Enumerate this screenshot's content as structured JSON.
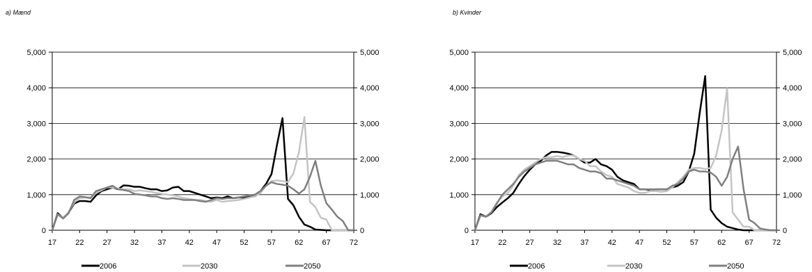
{
  "chart_data": [
    {
      "type": "line",
      "title": "a)  Mænd",
      "x": [
        17,
        18,
        19,
        20,
        21,
        22,
        23,
        24,
        25,
        26,
        27,
        28,
        29,
        30,
        31,
        32,
        33,
        34,
        35,
        36,
        37,
        38,
        39,
        40,
        41,
        42,
        43,
        44,
        45,
        46,
        47,
        48,
        49,
        50,
        51,
        52,
        53,
        54,
        55,
        56,
        57,
        58,
        59,
        60,
        61,
        62,
        63,
        64,
        65,
        66,
        67,
        68,
        69,
        70,
        71,
        72
      ],
      "xticks": [
        "17",
        "22",
        "27",
        "32",
        "37",
        "42",
        "47",
        "52",
        "57",
        "62",
        "67",
        "72"
      ],
      "yticks": [
        "0",
        "1,000",
        "2,000",
        "3,000",
        "4,000",
        "5,000"
      ],
      "xlim": [
        17,
        72
      ],
      "ylim": [
        0,
        5000
      ],
      "series": [
        {
          "name": "2006",
          "color": "#000000",
          "values": [
            0,
            480,
            350,
            500,
            750,
            820,
            820,
            800,
            980,
            1100,
            1150,
            1200,
            1150,
            1260,
            1250,
            1220,
            1220,
            1180,
            1150,
            1150,
            1100,
            1120,
            1200,
            1220,
            1100,
            1100,
            1050,
            1000,
            950,
            900,
            920,
            900,
            950,
            900,
            920,
            920,
            950,
            1000,
            1100,
            1300,
            1580,
            2400,
            3150,
            880,
            700,
            380,
            160,
            100,
            20,
            10,
            0,
            0,
            0,
            0,
            0,
            0
          ]
        },
        {
          "name": "2030",
          "color": "#c4c4c4",
          "values": [
            0,
            450,
            360,
            520,
            780,
            900,
            920,
            920,
            1050,
            1120,
            1200,
            1200,
            1170,
            1150,
            1150,
            1100,
            1120,
            1100,
            1080,
            1050,
            1020,
            1000,
            980,
            950,
            900,
            880,
            850,
            850,
            820,
            800,
            850,
            800,
            820,
            830,
            850,
            880,
            920,
            950,
            1050,
            1250,
            1380,
            1400,
            1380,
            1350,
            1600,
            2200,
            3180,
            800,
            650,
            350,
            300,
            0,
            0,
            0,
            0,
            0
          ]
        },
        {
          "name": "2050",
          "color": "#7f7f7f",
          "values": [
            0,
            450,
            330,
            480,
            850,
            950,
            930,
            900,
            1100,
            1150,
            1200,
            1250,
            1150,
            1130,
            1100,
            1020,
            1000,
            980,
            950,
            950,
            900,
            880,
            900,
            880,
            850,
            850,
            850,
            820,
            800,
            850,
            900,
            880,
            900,
            900,
            920,
            950,
            980,
            1000,
            1100,
            1250,
            1350,
            1300,
            1280,
            1250,
            1150,
            1030,
            1150,
            1500,
            1950,
            1250,
            760,
            580,
            380,
            260,
            0,
            0
          ]
        }
      ]
    },
    {
      "type": "line",
      "title": "b)  Kvinder",
      "x": [
        17,
        18,
        19,
        20,
        21,
        22,
        23,
        24,
        25,
        26,
        27,
        28,
        29,
        30,
        31,
        32,
        33,
        34,
        35,
        36,
        37,
        38,
        39,
        40,
        41,
        42,
        43,
        44,
        45,
        46,
        47,
        48,
        49,
        50,
        51,
        52,
        53,
        54,
        55,
        56,
        57,
        58,
        59,
        60,
        61,
        62,
        63,
        64,
        65,
        66,
        67,
        68,
        69,
        70,
        71,
        72
      ],
      "xticks": [
        "17",
        "22",
        "27",
        "32",
        "37",
        "42",
        "47",
        "52",
        "57",
        "62",
        "67",
        "72"
      ],
      "yticks": [
        "0",
        "1,000",
        "2,000",
        "3,000",
        "4,000",
        "5,000"
      ],
      "xlim": [
        17,
        72
      ],
      "ylim": [
        0,
        5000
      ],
      "series": [
        {
          "name": "2006",
          "color": "#000000",
          "values": [
            0,
            450,
            380,
            480,
            650,
            780,
            900,
            1050,
            1300,
            1520,
            1700,
            1850,
            1950,
            2100,
            2200,
            2200,
            2180,
            2150,
            2100,
            2000,
            1900,
            1900,
            2000,
            1850,
            1800,
            1700,
            1500,
            1400,
            1350,
            1300,
            1150,
            1150,
            1130,
            1150,
            1150,
            1150,
            1200,
            1250,
            1350,
            1650,
            2150,
            3300,
            4330,
            580,
            350,
            200,
            100,
            60,
            20,
            0,
            0,
            0,
            0,
            0,
            0,
            0
          ]
        },
        {
          "name": "2030",
          "color": "#c4c4c4",
          "values": [
            0,
            420,
            380,
            520,
            780,
            950,
            1050,
            1250,
            1550,
            1700,
            1800,
            1900,
            2000,
            2050,
            2050,
            2080,
            2050,
            2100,
            2100,
            2000,
            1950,
            1800,
            1800,
            1650,
            1550,
            1500,
            1300,
            1250,
            1200,
            1100,
            1050,
            1050,
            1100,
            1100,
            1080,
            1100,
            1200,
            1350,
            1500,
            1700,
            1750,
            1750,
            1720,
            1750,
            2100,
            2800,
            3980,
            500,
            300,
            100,
            100,
            0,
            0,
            0,
            0,
            0
          ]
        },
        {
          "name": "2050",
          "color": "#7f7f7f",
          "values": [
            0,
            420,
            380,
            500,
            750,
            1000,
            1150,
            1300,
            1500,
            1650,
            1750,
            1850,
            1900,
            1950,
            1950,
            1950,
            1900,
            1850,
            1850,
            1750,
            1700,
            1650,
            1650,
            1600,
            1450,
            1450,
            1400,
            1350,
            1300,
            1250,
            1150,
            1150,
            1150,
            1150,
            1150,
            1150,
            1250,
            1300,
            1450,
            1650,
            1700,
            1650,
            1650,
            1620,
            1500,
            1250,
            1500,
            2000,
            2350,
            1150,
            300,
            200,
            50,
            20,
            0,
            0
          ]
        }
      ]
    }
  ]
}
